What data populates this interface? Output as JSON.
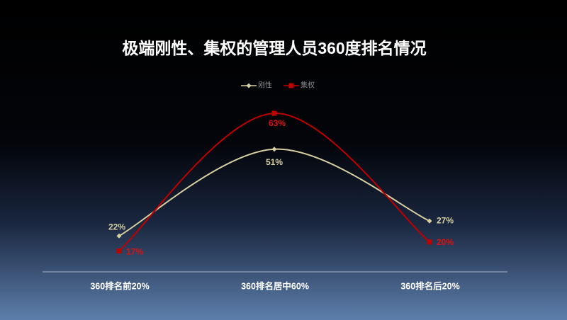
{
  "chart_data": {
    "type": "line",
    "title": "极端刚性、集权的管理人员360度排名情况",
    "categories": [
      "360排名前20%",
      "360排名居中60%",
      "360排名后20%"
    ],
    "series": [
      {
        "name": "刚性",
        "color": "#d8cfa2",
        "marker": "diamond",
        "values": [
          22,
          51,
          27
        ],
        "value_labels": [
          "22%",
          "51%",
          "27%"
        ]
      },
      {
        "name": "集权",
        "color": "#c00000",
        "marker": "square",
        "values": [
          17,
          63,
          20
        ],
        "value_labels": [
          "17%",
          "63%",
          "20%"
        ]
      }
    ],
    "ylim": [
      10,
      70
    ],
    "smooth": true,
    "legend": "top"
  }
}
